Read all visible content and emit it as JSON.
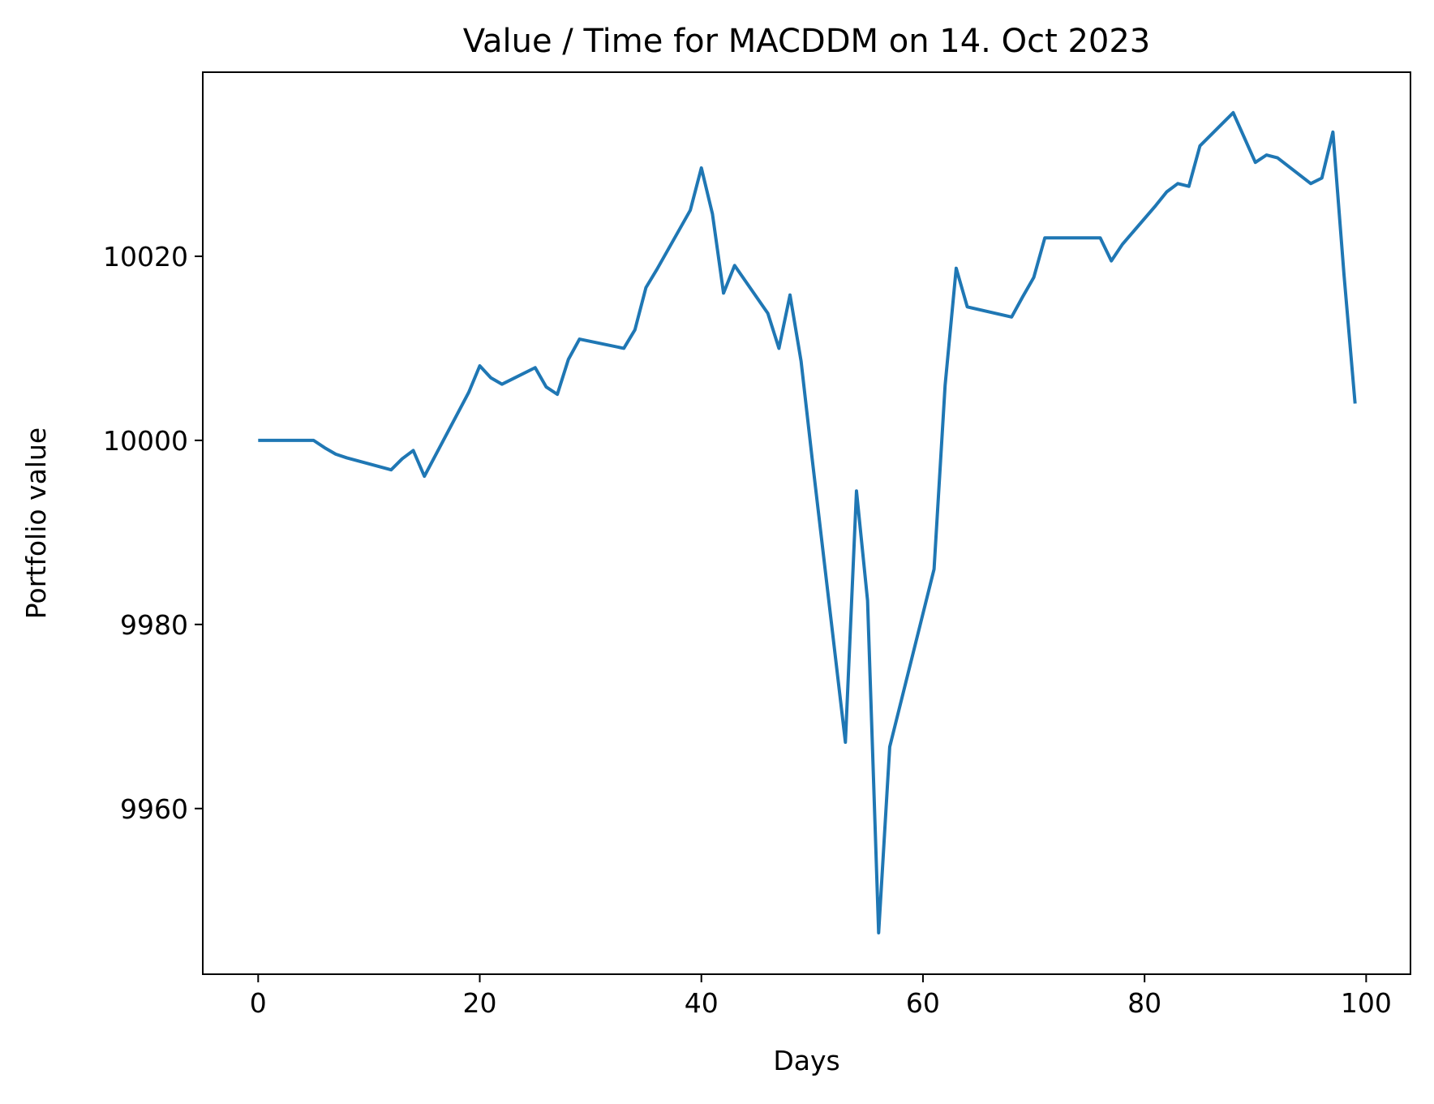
{
  "chart_data": {
    "type": "line",
    "title": "Value / Time for MACDDM on 14. Oct 2023",
    "xlabel": "Days",
    "ylabel": "Portfolio value",
    "xlim": [
      -5,
      104
    ],
    "ylim": [
      9942,
      10040
    ],
    "grid": false,
    "legend": "none",
    "xticks": [
      0,
      20,
      40,
      60,
      80,
      100
    ],
    "yticks": [
      9960,
      9980,
      10000,
      10020
    ],
    "xtick_labels": [
      "0",
      "20",
      "40",
      "60",
      "80",
      "100"
    ],
    "ytick_labels": [
      "9960",
      "9980",
      "10000",
      "10020"
    ],
    "series": [
      {
        "name": "Portfolio value",
        "color": "#1f77b4",
        "points": [
          [
            0,
            10000.0
          ],
          [
            5,
            10000.0
          ],
          [
            6,
            9999.2
          ],
          [
            7,
            9998.5
          ],
          [
            8,
            9998.1
          ],
          [
            12,
            9996.8
          ],
          [
            13,
            9998.0
          ],
          [
            14,
            9998.9
          ],
          [
            15,
            9996.1
          ],
          [
            19,
            10005.2
          ],
          [
            20,
            10008.1
          ],
          [
            21,
            10006.8
          ],
          [
            22,
            10006.1
          ],
          [
            25,
            10007.9
          ],
          [
            26,
            10005.8
          ],
          [
            27,
            10005.0
          ],
          [
            28,
            10008.8
          ],
          [
            29,
            10011.0
          ],
          [
            33,
            10010.0
          ],
          [
            34,
            10012.0
          ],
          [
            35,
            10016.6
          ],
          [
            36,
            10018.6
          ],
          [
            39,
            10025.0
          ],
          [
            40,
            10029.6
          ],
          [
            41,
            10024.6
          ],
          [
            42,
            10016.0
          ],
          [
            43,
            10019.0
          ],
          [
            46,
            10013.8
          ],
          [
            47,
            10010.0
          ],
          [
            48,
            10015.8
          ],
          [
            49,
            10008.6
          ],
          [
            50,
            9998.0
          ],
          [
            53,
            9967.2
          ],
          [
            54,
            9994.5
          ],
          [
            55,
            9982.6
          ],
          [
            56,
            9946.5
          ],
          [
            57,
            9966.7
          ],
          [
            61,
            9986.0
          ],
          [
            62,
            10006.0
          ],
          [
            63,
            10018.7
          ],
          [
            64,
            10014.5
          ],
          [
            68,
            10013.4
          ],
          [
            69,
            10015.6
          ],
          [
            70,
            10017.7
          ],
          [
            71,
            10022.0
          ],
          [
            76,
            10022.0
          ],
          [
            77,
            10019.5
          ],
          [
            78,
            10021.3
          ],
          [
            81,
            10025.5
          ],
          [
            82,
            10027.0
          ],
          [
            83,
            10027.9
          ],
          [
            84,
            10027.6
          ],
          [
            85,
            10032.0
          ],
          [
            88,
            10035.6
          ],
          [
            90,
            10030.2
          ],
          [
            91,
            10031.0
          ],
          [
            92,
            10030.7
          ],
          [
            95,
            10027.9
          ],
          [
            96,
            10028.5
          ],
          [
            97,
            10033.5
          ],
          [
            98,
            10018.0
          ],
          [
            99,
            10004.0
          ]
        ]
      }
    ]
  }
}
